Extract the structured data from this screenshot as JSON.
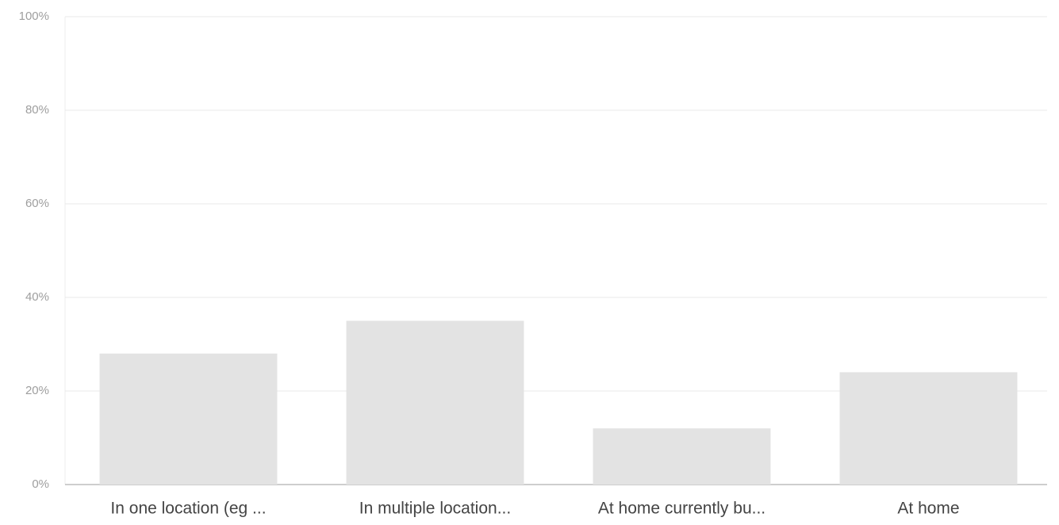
{
  "chart_data": {
    "type": "bar",
    "categories": [
      "In one location (eg ...",
      "In multiple location...",
      "At home currently bu...",
      "At home"
    ],
    "values": [
      28,
      35,
      12,
      24
    ],
    "color": "#e3e3e3",
    "ylim": [
      0,
      100
    ],
    "yticks": [
      {
        "value": 0,
        "label": "0%"
      },
      {
        "value": 20,
        "label": "20%"
      },
      {
        "value": 40,
        "label": "40%"
      },
      {
        "value": 60,
        "label": "60%"
      },
      {
        "value": 80,
        "label": "80%"
      },
      {
        "value": 100,
        "label": "100%"
      }
    ],
    "grid": true
  }
}
